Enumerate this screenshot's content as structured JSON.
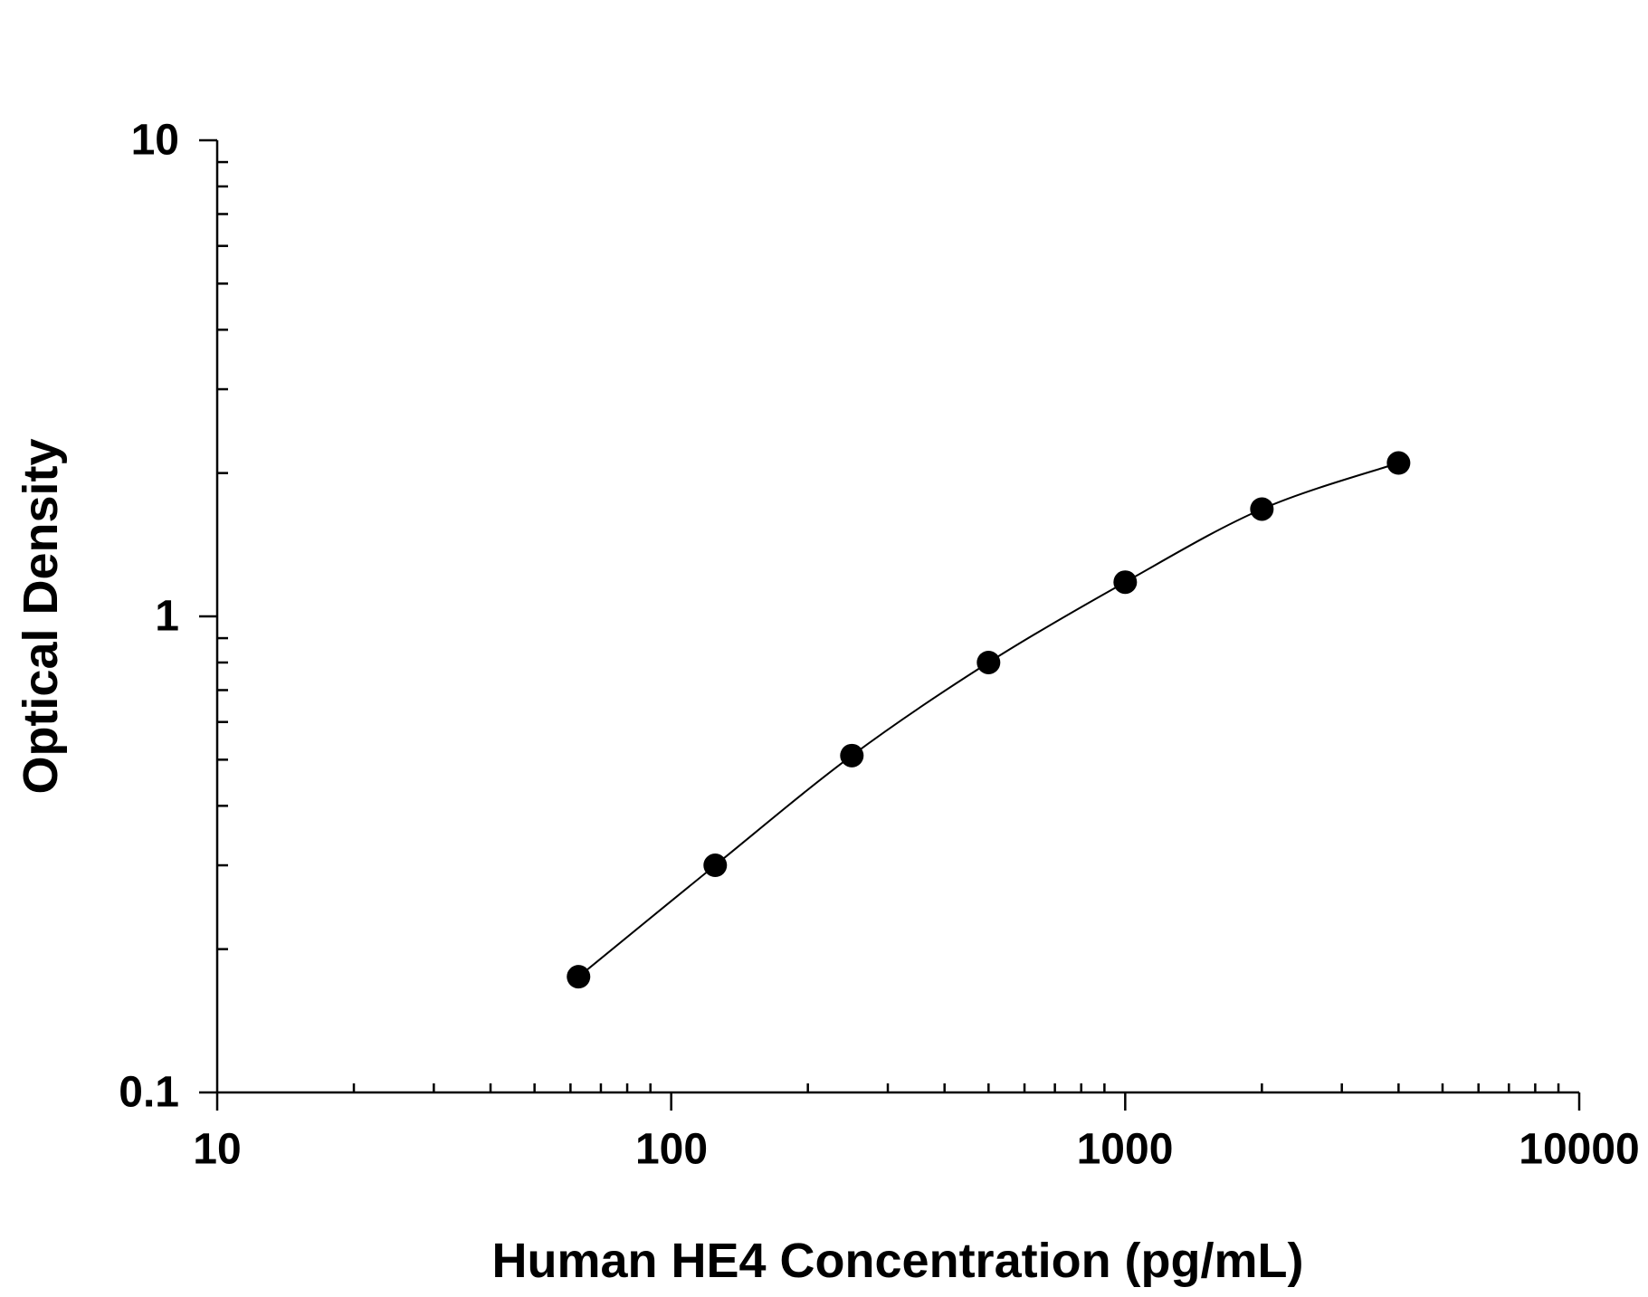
{
  "chart_data": {
    "type": "scatter",
    "title": "",
    "xlabel": "Human HE4 Concentration (pg/mL)",
    "ylabel": "Optical Density",
    "xscale": "log",
    "yscale": "log",
    "xlim": [
      10,
      10000
    ],
    "ylim": [
      0.1,
      10
    ],
    "x_tick_labels": [
      "10",
      "100",
      "1000",
      "10000"
    ],
    "y_tick_labels": [
      "0.1",
      "1",
      "10"
    ],
    "grid": false,
    "legend": "none",
    "series": [
      {
        "x": [
          62.5,
          125,
          250,
          500,
          1000,
          2000,
          4000
        ],
        "y": [
          0.175,
          0.3,
          0.51,
          0.8,
          1.18,
          1.68,
          2.1
        ],
        "marker": "circle",
        "line": "smooth fit"
      }
    ],
    "colors": {
      "marker": "#000000",
      "line": "#000000"
    }
  }
}
